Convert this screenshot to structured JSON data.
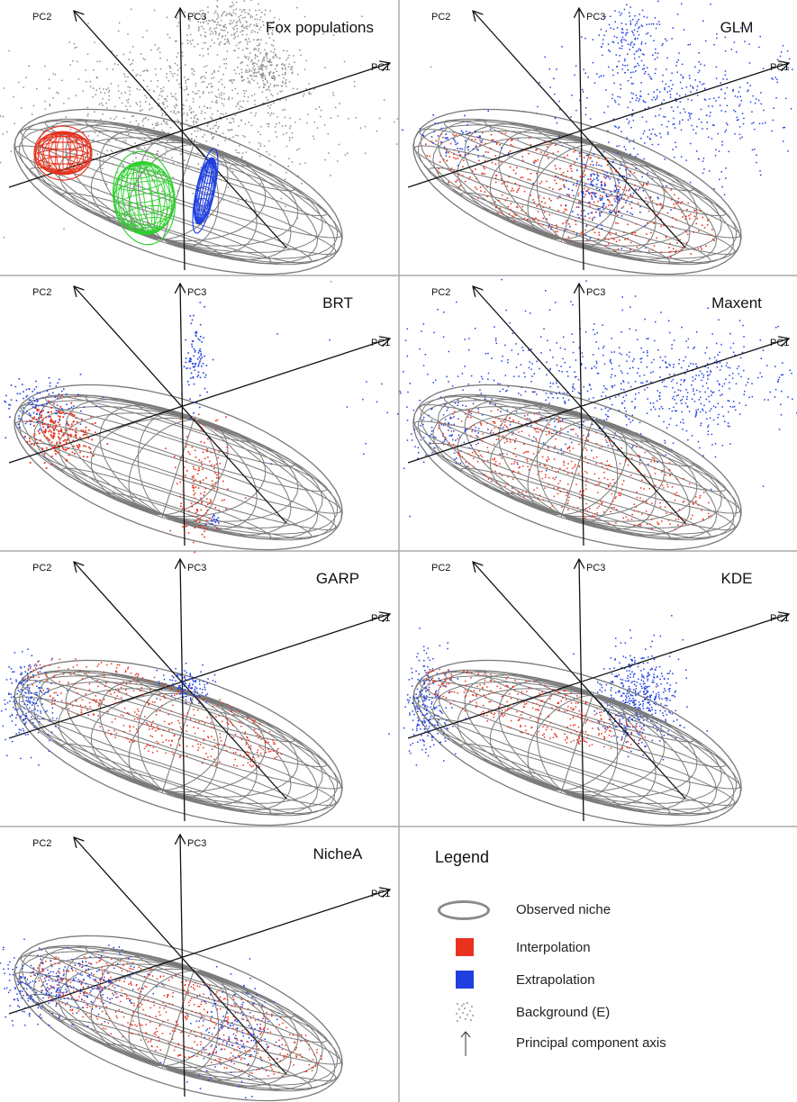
{
  "panels": [
    {
      "title": "Fox populations",
      "variant": "fox"
    },
    {
      "title": "GLM",
      "variant": "glm"
    },
    {
      "title": "BRT",
      "variant": "brt"
    },
    {
      "title": "Maxent",
      "variant": "maxent"
    },
    {
      "title": "GARP",
      "variant": "garp"
    },
    {
      "title": "KDE",
      "variant": "kde"
    },
    {
      "title": "NicheA",
      "variant": "nichea"
    }
  ],
  "axes": {
    "pc1": "PC1",
    "pc2": "PC2",
    "pc3": "PC3"
  },
  "colors": {
    "interpolation": "#e8321e",
    "extrapolation": "#1f3fe0",
    "background": "#8c8c8c",
    "ellipsoid": "#7a7a7a",
    "population_green": "#2fd12f"
  },
  "legend": {
    "title": "Legend",
    "items": [
      {
        "label": "Observed niche",
        "icon": "ellipse-outline-icon"
      },
      {
        "label": "Interpolation",
        "icon": "red-square-icon"
      },
      {
        "label": "Extrapolation",
        "icon": "blue-square-icon"
      },
      {
        "label": "Background (E)",
        "icon": "gray-dots-icon"
      },
      {
        "label": "Principal component axis",
        "icon": "arrow-up-icon"
      }
    ]
  }
}
